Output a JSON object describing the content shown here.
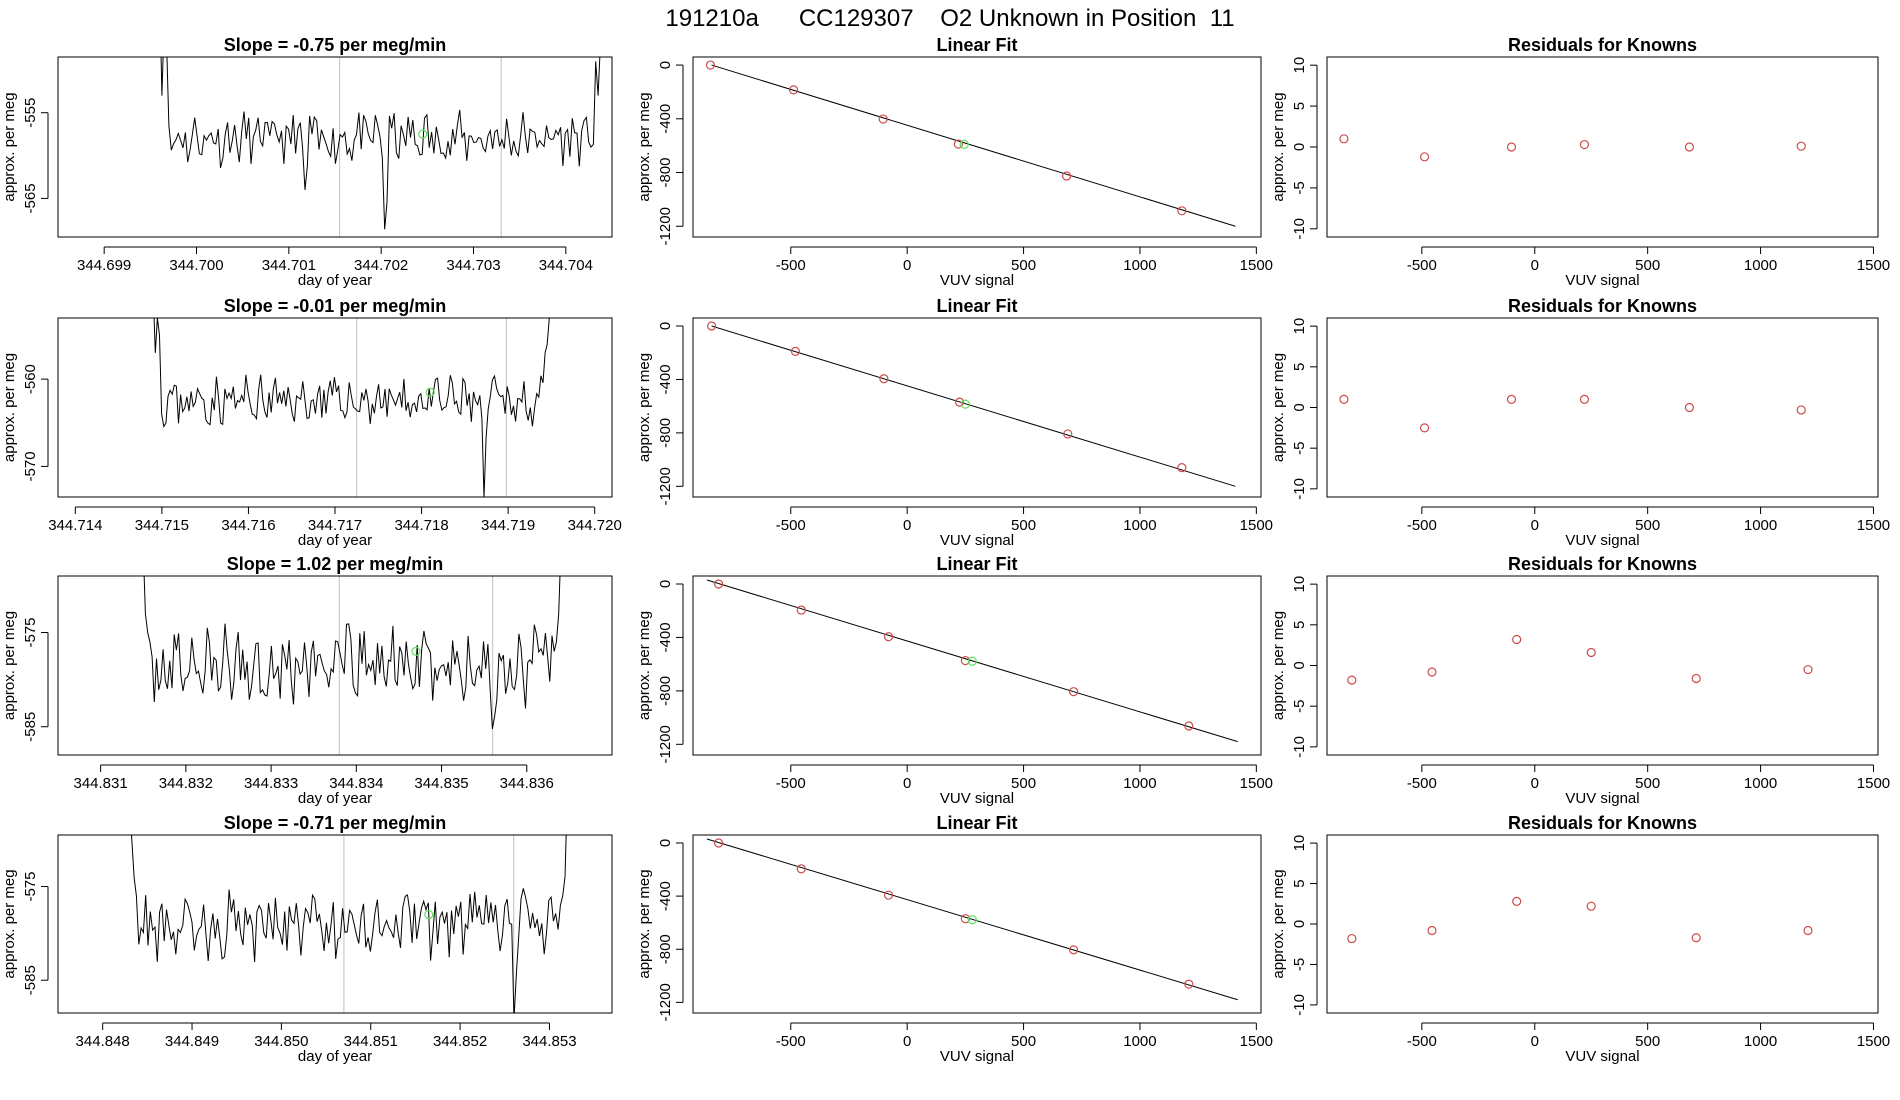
{
  "figure_title": "191210a      CC129307    O2 Unknown in Position  11",
  "chart_data": [
    {
      "id": "r1-trace",
      "type": "line",
      "title": "Slope =  -0.75  per meg/min",
      "xlabel": "day of year",
      "ylabel": "approx. per meg",
      "xlim": [
        344.6985,
        344.7045
      ],
      "ylim": [
        -569.5,
        -548.5
      ],
      "xticks": [
        {
          "v": 344.699,
          "label": "344.699"
        },
        {
          "v": 344.7,
          "label": "344.700"
        },
        {
          "v": 344.701,
          "label": "344.701"
        },
        {
          "v": 344.702,
          "label": "344.702"
        },
        {
          "v": 344.703,
          "label": "344.703"
        },
        {
          "v": 344.704,
          "label": "344.704"
        }
      ],
      "yticks": [
        {
          "v": -555,
          "label": "-555"
        },
        {
          "v": -565,
          "label": "-565"
        }
      ],
      "vlines": [
        344.70155,
        344.7033
      ],
      "trace": {
        "x0": 344.6996,
        "x1": 344.7044,
        "base": -558,
        "amp": 2.6,
        "seed": 11,
        "edge": [
          -540,
          -553,
          -544,
          -547,
          -549,
          -553,
          -547,
          -540
        ],
        "spikes": [
          [
            0.33,
            -6
          ],
          [
            0.51,
            -9.5
          ]
        ]
      },
      "point": {
        "x": 344.70245,
        "y": -557.5
      }
    },
    {
      "id": "r1-fit",
      "type": "scatter",
      "title": "Linear Fit",
      "xlabel": "VUV signal",
      "ylabel": "approx. per meg",
      "xlim": [
        -920,
        1520
      ],
      "ylim": [
        -1280,
        60
      ],
      "xticks": [
        {
          "v": -500,
          "label": "-500"
        },
        {
          "v": 0,
          "label": "0"
        },
        {
          "v": 500,
          "label": "500"
        },
        {
          "v": 1000,
          "label": "1000"
        },
        {
          "v": 1500,
          "label": "1500"
        }
      ],
      "yticks": [
        {
          "v": 0,
          "label": "0"
        },
        {
          "v": -400,
          "label": "-400"
        },
        {
          "v": -800,
          "label": "-800"
        },
        {
          "v": -1200,
          "label": "-1200"
        }
      ],
      "line": {
        "x": [
          -840,
          1410
        ],
        "y": [
          0,
          -1200
        ]
      },
      "knowns": [
        [
          -845,
          0
        ],
        [
          -488,
          -185
        ],
        [
          -103,
          -402
        ],
        [
          220,
          -588
        ],
        [
          685,
          -826
        ],
        [
          1180,
          -1085
        ]
      ],
      "unknown": [
        245,
        -590
      ]
    },
    {
      "id": "r1-resid",
      "type": "scatter",
      "title": "Residuals for Knowns",
      "xlabel": "VUV signal",
      "ylabel": "approx. per meg",
      "xlim": [
        -920,
        1520
      ],
      "ylim": [
        -11,
        11
      ],
      "xticks": [
        {
          "v": -500,
          "label": "-500"
        },
        {
          "v": 0,
          "label": "0"
        },
        {
          "v": 500,
          "label": "500"
        },
        {
          "v": 1000,
          "label": "1000"
        },
        {
          "v": 1500,
          "label": "1500"
        }
      ],
      "yticks": [
        {
          "v": 10,
          "label": "10"
        },
        {
          "v": 5,
          "label": "5"
        },
        {
          "v": 0,
          "label": "0"
        },
        {
          "v": -5,
          "label": "-5"
        },
        {
          "v": -10,
          "label": "-10"
        }
      ],
      "knowns": [
        [
          -845,
          1.0
        ],
        [
          -488,
          -1.2
        ],
        [
          -103,
          0.0
        ],
        [
          220,
          0.3
        ],
        [
          685,
          0.0
        ],
        [
          1180,
          0.1
        ]
      ]
    },
    {
      "id": "r2-trace",
      "type": "line",
      "title": "Slope =  -0.01  per meg/min",
      "xlabel": "day of year",
      "ylabel": "approx. per meg",
      "xlim": [
        344.7138,
        344.7202
      ],
      "ylim": [
        -573.5,
        -553
      ],
      "xticks": [
        {
          "v": 344.714,
          "label": "344.714"
        },
        {
          "v": 344.715,
          "label": "344.715"
        },
        {
          "v": 344.716,
          "label": "344.716"
        },
        {
          "v": 344.717,
          "label": "344.717"
        },
        {
          "v": 344.718,
          "label": "344.718"
        },
        {
          "v": 344.719,
          "label": "344.719"
        },
        {
          "v": 344.72,
          "label": "344.720"
        }
      ],
      "yticks": [
        {
          "v": -560,
          "label": "-560"
        },
        {
          "v": -570,
          "label": "-570"
        }
      ],
      "vlines": [
        344.71725,
        344.71898
      ],
      "trace": {
        "x0": 344.7149,
        "x1": 344.7195,
        "base": -562.5,
        "amp": 2.3,
        "seed": 23,
        "edge": [
          -550,
          -557,
          -553,
          -555,
          -557,
          -556,
          -553,
          -548
        ],
        "spikes": [
          [
            0.83,
            -11
          ]
        ]
      },
      "point": {
        "x": 344.7181,
        "y": -561.5
      }
    },
    {
      "id": "r2-fit",
      "type": "scatter",
      "title": "Linear Fit",
      "xlabel": "VUV signal",
      "ylabel": "approx. per meg",
      "xlim": [
        -920,
        1520
      ],
      "ylim": [
        -1280,
        60
      ],
      "xticks": [
        {
          "v": -500,
          "label": "-500"
        },
        {
          "v": 0,
          "label": "0"
        },
        {
          "v": 500,
          "label": "500"
        },
        {
          "v": 1000,
          "label": "1000"
        },
        {
          "v": 1500,
          "label": "1500"
        }
      ],
      "yticks": [
        {
          "v": 0,
          "label": "0"
        },
        {
          "v": -400,
          "label": "-400"
        },
        {
          "v": -800,
          "label": "-800"
        },
        {
          "v": -1200,
          "label": "-1200"
        }
      ],
      "line": {
        "x": [
          -840,
          1410
        ],
        "y": [
          0,
          -1200
        ]
      },
      "knowns": [
        [
          -840,
          0
        ],
        [
          -480,
          -190
        ],
        [
          -100,
          -395
        ],
        [
          225,
          -570
        ],
        [
          690,
          -808
        ],
        [
          1180,
          -1060
        ]
      ],
      "unknown": [
        250,
        -585
      ]
    },
    {
      "id": "r2-resid",
      "type": "scatter",
      "title": "Residuals for Knowns",
      "xlabel": "VUV signal",
      "ylabel": "approx. per meg",
      "xlim": [
        -920,
        1520
      ],
      "ylim": [
        -11,
        11
      ],
      "xticks": [
        {
          "v": -500,
          "label": "-500"
        },
        {
          "v": 0,
          "label": "0"
        },
        {
          "v": 500,
          "label": "500"
        },
        {
          "v": 1000,
          "label": "1000"
        },
        {
          "v": 1500,
          "label": "1500"
        }
      ],
      "yticks": [
        {
          "v": 10,
          "label": "10"
        },
        {
          "v": 5,
          "label": "5"
        },
        {
          "v": 0,
          "label": "0"
        },
        {
          "v": -5,
          "label": "-5"
        },
        {
          "v": -10,
          "label": "-10"
        }
      ],
      "knowns": [
        [
          -845,
          1.0
        ],
        [
          -488,
          -2.5
        ],
        [
          -103,
          1.0
        ],
        [
          220,
          1.0
        ],
        [
          685,
          0.0
        ],
        [
          1180,
          -0.3
        ]
      ]
    },
    {
      "id": "r3-trace",
      "type": "line",
      "title": "Slope =  1.02  per meg/min",
      "xlabel": "day of year",
      "ylabel": "approx. per meg",
      "xlim": [
        344.8305,
        344.837
      ],
      "ylim": [
        -588,
        -569
      ],
      "xticks": [
        {
          "v": 344.831,
          "label": "344.831"
        },
        {
          "v": 344.832,
          "label": "344.832"
        },
        {
          "v": 344.833,
          "label": "344.833"
        },
        {
          "v": 344.834,
          "label": "344.834"
        },
        {
          "v": 344.835,
          "label": "344.835"
        },
        {
          "v": 344.836,
          "label": "344.836"
        }
      ],
      "yticks": [
        {
          "v": -575,
          "label": "-575"
        },
        {
          "v": -585,
          "label": "-585"
        }
      ],
      "vlines": [
        344.8338,
        344.8356
      ],
      "trace": {
        "x0": 344.8315,
        "x1": 344.8364,
        "base": -578.5,
        "amp": 3.4,
        "seed": 37,
        "edge": [
          -566,
          -573,
          -575,
          -576,
          -577,
          -576,
          -573,
          -566
        ],
        "spikes": [
          [
            0.84,
            -5
          ]
        ]
      },
      "point": {
        "x": 344.8347,
        "y": -577
      }
    },
    {
      "id": "r3-fit",
      "type": "scatter",
      "title": "Linear Fit",
      "xlabel": "VUV signal",
      "ylabel": "approx. per meg",
      "xlim": [
        -920,
        1520
      ],
      "ylim": [
        -1280,
        60
      ],
      "xticks": [
        {
          "v": -500,
          "label": "-500"
        },
        {
          "v": 0,
          "label": "0"
        },
        {
          "v": 500,
          "label": "500"
        },
        {
          "v": 1000,
          "label": "1000"
        },
        {
          "v": 1500,
          "label": "1500"
        }
      ],
      "yticks": [
        {
          "v": 0,
          "label": "0"
        },
        {
          "v": -400,
          "label": "-400"
        },
        {
          "v": -800,
          "label": "-800"
        },
        {
          "v": -1200,
          "label": "-1200"
        }
      ],
      "line": {
        "x": [
          -860,
          1420
        ],
        "y": [
          30,
          -1180
        ]
      },
      "knowns": [
        [
          -810,
          0
        ],
        [
          -455,
          -195
        ],
        [
          -80,
          -395
        ],
        [
          250,
          -573
        ],
        [
          715,
          -806
        ],
        [
          1210,
          -1063
        ]
      ],
      "unknown": [
        280,
        -578
      ]
    },
    {
      "id": "r3-resid",
      "type": "scatter",
      "title": "Residuals for Knowns",
      "xlabel": "VUV signal",
      "ylabel": "approx. per meg",
      "xlim": [
        -920,
        1520
      ],
      "ylim": [
        -11,
        11
      ],
      "xticks": [
        {
          "v": -500,
          "label": "-500"
        },
        {
          "v": 0,
          "label": "0"
        },
        {
          "v": 500,
          "label": "500"
        },
        {
          "v": 1000,
          "label": "1000"
        },
        {
          "v": 1500,
          "label": "1500"
        }
      ],
      "yticks": [
        {
          "v": 10,
          "label": "10"
        },
        {
          "v": 5,
          "label": "5"
        },
        {
          "v": 0,
          "label": "0"
        },
        {
          "v": -5,
          "label": "-5"
        },
        {
          "v": -10,
          "label": "-10"
        }
      ],
      "knowns": [
        [
          -810,
          -1.8
        ],
        [
          -455,
          -0.8
        ],
        [
          -80,
          3.2
        ],
        [
          250,
          1.6
        ],
        [
          715,
          -1.6
        ],
        [
          1210,
          -0.5
        ]
      ]
    },
    {
      "id": "r4-trace",
      "type": "line",
      "title": "Slope =  -0.71  per meg/min",
      "xlabel": "day of year",
      "ylabel": "approx. per meg",
      "xlim": [
        344.8475,
        344.8537
      ],
      "ylim": [
        -588.5,
        -569.5
      ],
      "xticks": [
        {
          "v": 344.848,
          "label": "344.848"
        },
        {
          "v": 344.849,
          "label": "344.849"
        },
        {
          "v": 344.85,
          "label": "344.850"
        },
        {
          "v": 344.851,
          "label": "344.851"
        },
        {
          "v": 344.852,
          "label": "344.852"
        },
        {
          "v": 344.853,
          "label": "344.853"
        }
      ],
      "yticks": [
        {
          "v": -575,
          "label": "-575"
        },
        {
          "v": -585,
          "label": "-585"
        }
      ],
      "vlines": [
        344.8507,
        344.8526
      ],
      "trace": {
        "x0": 344.8483,
        "x1": 344.8532,
        "base": -579,
        "amp": 3.2,
        "seed": 53,
        "edge": [
          -566,
          -570,
          -574,
          -576,
          -577,
          -576,
          -574,
          -565
        ],
        "spikes": [
          [
            0.88,
            -9
          ]
        ]
      },
      "point": {
        "x": 344.85165,
        "y": -578
      }
    },
    {
      "id": "r4-fit",
      "type": "scatter",
      "title": "Linear Fit",
      "xlabel": "VUV signal",
      "ylabel": "approx. per meg",
      "xlim": [
        -920,
        1520
      ],
      "ylim": [
        -1280,
        60
      ],
      "xticks": [
        {
          "v": -500,
          "label": "-500"
        },
        {
          "v": 0,
          "label": "0"
        },
        {
          "v": 500,
          "label": "500"
        },
        {
          "v": 1000,
          "label": "1000"
        },
        {
          "v": 1500,
          "label": "1500"
        }
      ],
      "yticks": [
        {
          "v": 0,
          "label": "0"
        },
        {
          "v": -400,
          "label": "-400"
        },
        {
          "v": -800,
          "label": "-800"
        },
        {
          "v": -1200,
          "label": "-1200"
        }
      ],
      "line": {
        "x": [
          -860,
          1420
        ],
        "y": [
          30,
          -1180
        ]
      },
      "knowns": [
        [
          -810,
          0
        ],
        [
          -455,
          -195
        ],
        [
          -80,
          -393
        ],
        [
          250,
          -570
        ],
        [
          715,
          -805
        ],
        [
          1210,
          -1063
        ]
      ],
      "unknown": [
        280,
        -578
      ]
    },
    {
      "id": "r4-resid",
      "type": "scatter",
      "title": "Residuals for Knowns",
      "xlabel": "VUV signal",
      "ylabel": "approx. per meg",
      "xlim": [
        -920,
        1520
      ],
      "ylim": [
        -11,
        11
      ],
      "xticks": [
        {
          "v": -500,
          "label": "-500"
        },
        {
          "v": 0,
          "label": "0"
        },
        {
          "v": 500,
          "label": "500"
        },
        {
          "v": 1000,
          "label": "1000"
        },
        {
          "v": 1500,
          "label": "1500"
        }
      ],
      "yticks": [
        {
          "v": 10,
          "label": "10"
        },
        {
          "v": 5,
          "label": "5"
        },
        {
          "v": 0,
          "label": "0"
        },
        {
          "v": -5,
          "label": "-5"
        },
        {
          "v": -10,
          "label": "-10"
        }
      ],
      "knowns": [
        [
          -810,
          -1.8
        ],
        [
          -455,
          -0.8
        ],
        [
          -80,
          2.8
        ],
        [
          250,
          2.2
        ],
        [
          715,
          -1.7
        ],
        [
          1210,
          -0.8
        ]
      ]
    }
  ],
  "colors": {
    "known_marker": "#cd4a4a",
    "unknown_marker": "#5ee05e",
    "trace": "#000000",
    "vline": "#c0c0c0",
    "axis": "#000000"
  }
}
